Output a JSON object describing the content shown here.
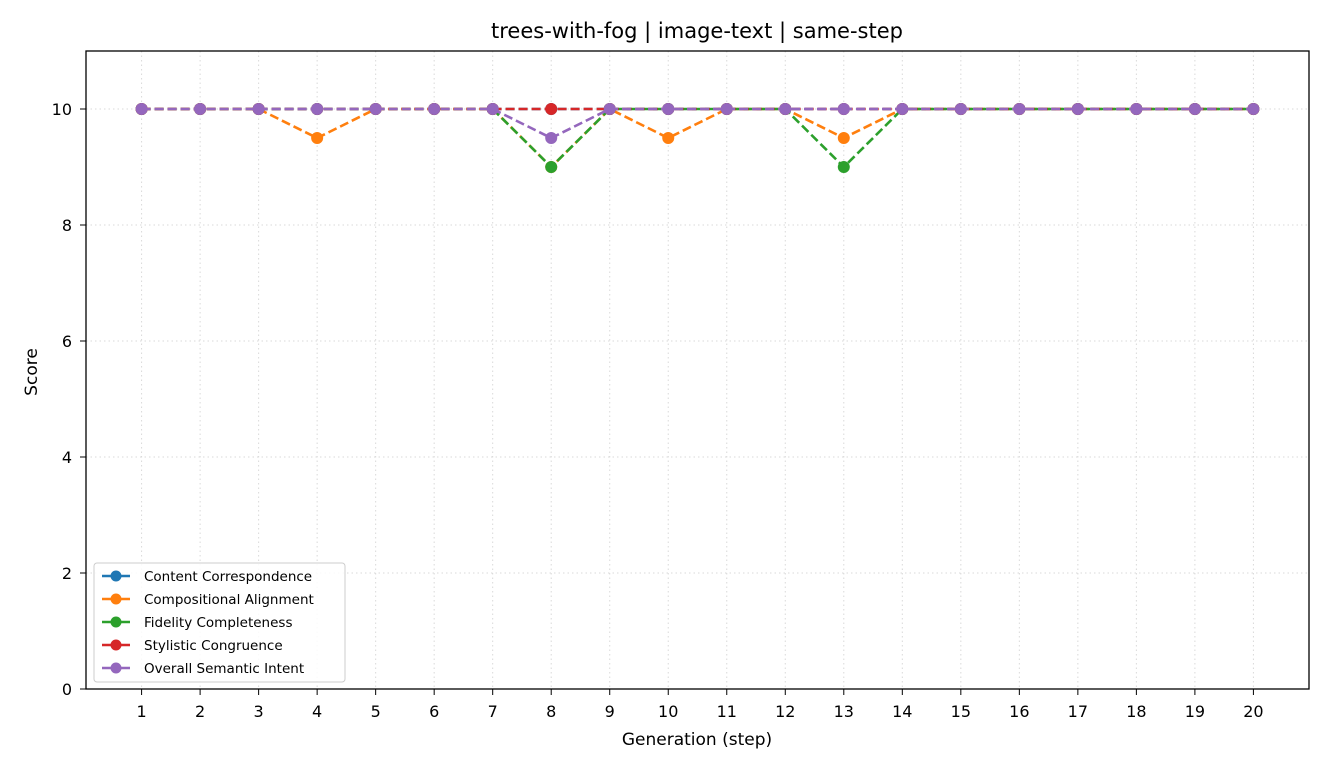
{
  "chart_data": {
    "type": "line",
    "title": "trees-with-fog | image-text | same-step",
    "xlabel": "Generation (step)",
    "ylabel": "Score",
    "x": [
      1,
      2,
      3,
      4,
      5,
      6,
      7,
      8,
      9,
      10,
      11,
      12,
      13,
      14,
      15,
      16,
      17,
      18,
      19,
      20
    ],
    "xlim": [
      0.05,
      20.95
    ],
    "ylim": [
      0,
      11
    ],
    "yticks": [
      0,
      2,
      4,
      6,
      8,
      10
    ],
    "grid": true,
    "legend_position": "lower-left",
    "series": [
      {
        "name": "Content Correspondence",
        "color": "#1f77b4",
        "values": [
          10,
          10,
          10,
          10,
          10,
          10,
          10,
          10,
          10,
          10,
          10,
          10,
          10,
          10,
          10,
          10,
          10,
          10,
          10,
          10
        ]
      },
      {
        "name": "Compositional Alignment",
        "color": "#ff7f0e",
        "values": [
          10,
          10,
          10,
          9.5,
          10,
          10,
          10,
          9,
          10,
          9.5,
          10,
          10,
          9.5,
          10,
          10,
          10,
          10,
          10,
          10,
          10
        ]
      },
      {
        "name": "Fidelity Completeness",
        "color": "#2ca02c",
        "values": [
          10,
          10,
          10,
          10,
          10,
          10,
          10,
          9,
          10,
          10,
          10,
          10,
          9,
          10,
          10,
          10,
          10,
          10,
          10,
          10
        ]
      },
      {
        "name": "Stylistic Congruence",
        "color": "#d62728",
        "values": [
          10,
          10,
          10,
          10,
          10,
          10,
          10,
          10,
          10,
          10,
          10,
          10,
          10,
          10,
          10,
          10,
          10,
          10,
          10,
          10
        ]
      },
      {
        "name": "Overall Semantic Intent",
        "color": "#9467bd",
        "values": [
          10,
          10,
          10,
          10,
          10,
          10,
          10,
          9.5,
          10,
          10,
          10,
          10,
          10,
          10,
          10,
          10,
          10,
          10,
          10,
          10
        ]
      }
    ]
  }
}
